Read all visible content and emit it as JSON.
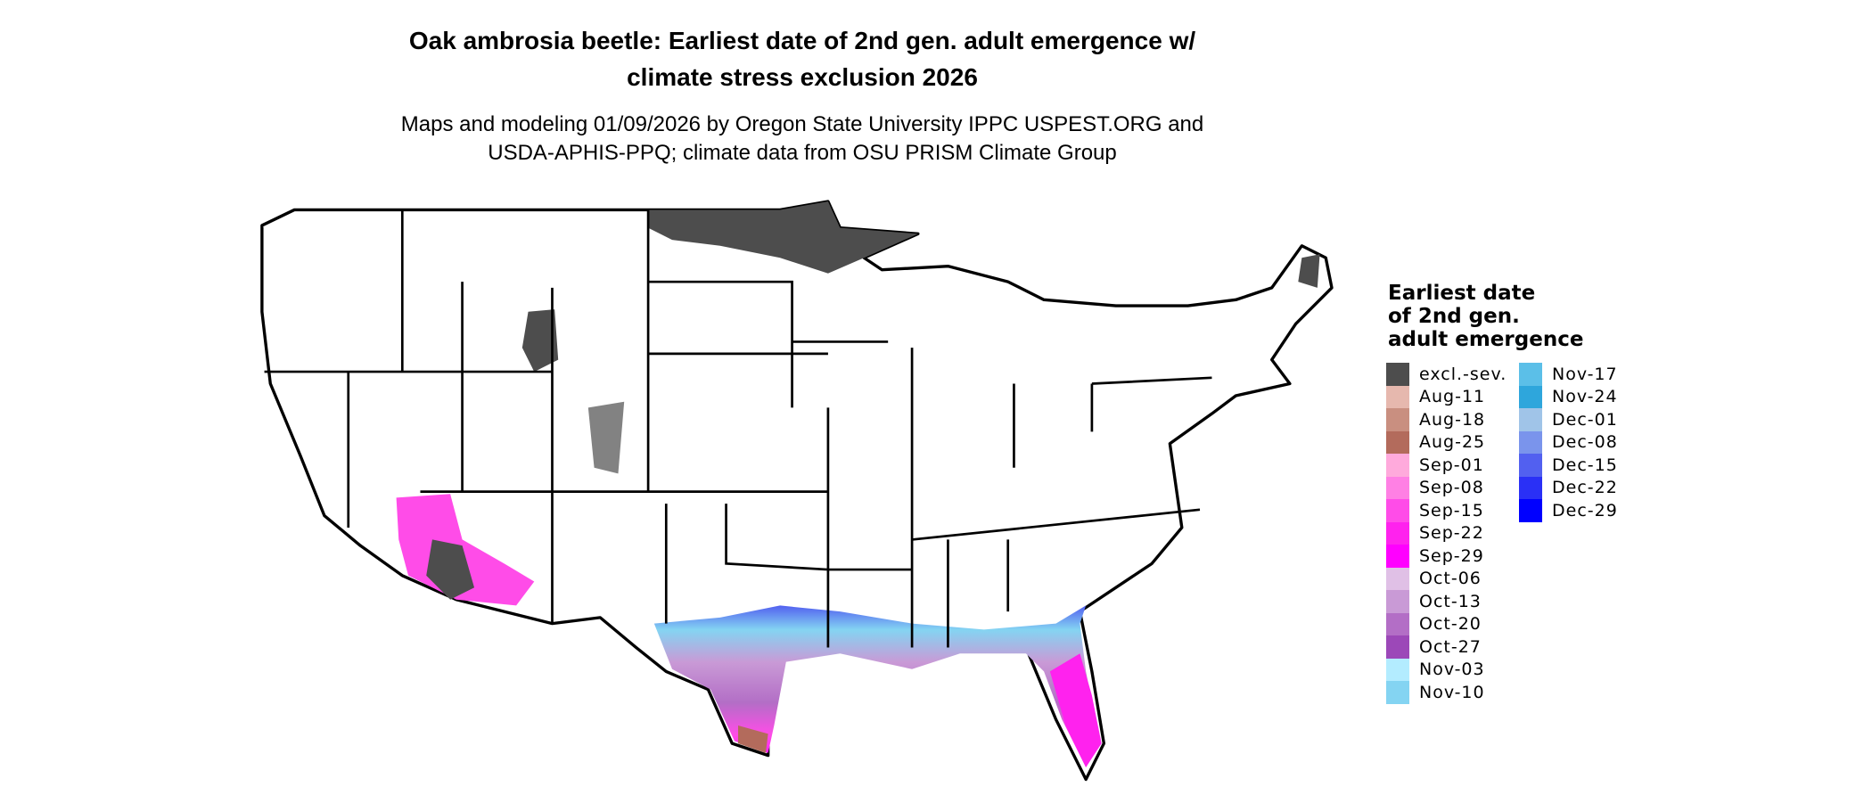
{
  "title": {
    "line1": "Oak ambrosia beetle: Earliest date of 2nd gen. adult emergence w/",
    "line2": "climate stress exclusion 2026"
  },
  "subtitle": {
    "line1": "Maps and modeling 01/09/2026 by Oregon State University IPPC USPEST.ORG and",
    "line2": "USDA-APHIS-PPQ; climate data from OSU PRISM Climate Group"
  },
  "legend": {
    "title": [
      "Earliest date",
      "of 2nd gen.",
      "adult emergence"
    ],
    "col1": [
      {
        "label": "excl.-sev.",
        "color": "#4d4d4d"
      },
      {
        "label": "Aug-11",
        "color": "#e6b8ae"
      },
      {
        "label": "Aug-18",
        "color": "#c98f80"
      },
      {
        "label": "Aug-25",
        "color": "#b36b5c"
      },
      {
        "label": "Sep-01",
        "color": "#ffaadc"
      },
      {
        "label": "Sep-08",
        "color": "#ff80e4"
      },
      {
        "label": "Sep-15",
        "color": "#ff4ce8"
      },
      {
        "label": "Sep-22",
        "color": "#ff22ee"
      },
      {
        "label": "Sep-29",
        "color": "#ff00ff"
      },
      {
        "label": "Oct-06",
        "color": "#e0c0e6"
      },
      {
        "label": "Oct-13",
        "color": "#c99ad6"
      },
      {
        "label": "Oct-20",
        "color": "#b36ec6"
      },
      {
        "label": "Oct-27",
        "color": "#9c48b8"
      },
      {
        "label": "Nov-03",
        "color": "#b3ecff"
      },
      {
        "label": "Nov-10",
        "color": "#84d4f2"
      }
    ],
    "col2": [
      {
        "label": "Nov-17",
        "color": "#5bbfe8"
      },
      {
        "label": "Nov-24",
        "color": "#2ea6dc"
      },
      {
        "label": "Dec-01",
        "color": "#a0c4e8"
      },
      {
        "label": "Dec-08",
        "color": "#7a94ec"
      },
      {
        "label": "Dec-15",
        "color": "#5260f0"
      },
      {
        "label": "Dec-22",
        "color": "#2a30f6"
      },
      {
        "label": "Dec-29",
        "color": "#0000ff"
      }
    ]
  }
}
